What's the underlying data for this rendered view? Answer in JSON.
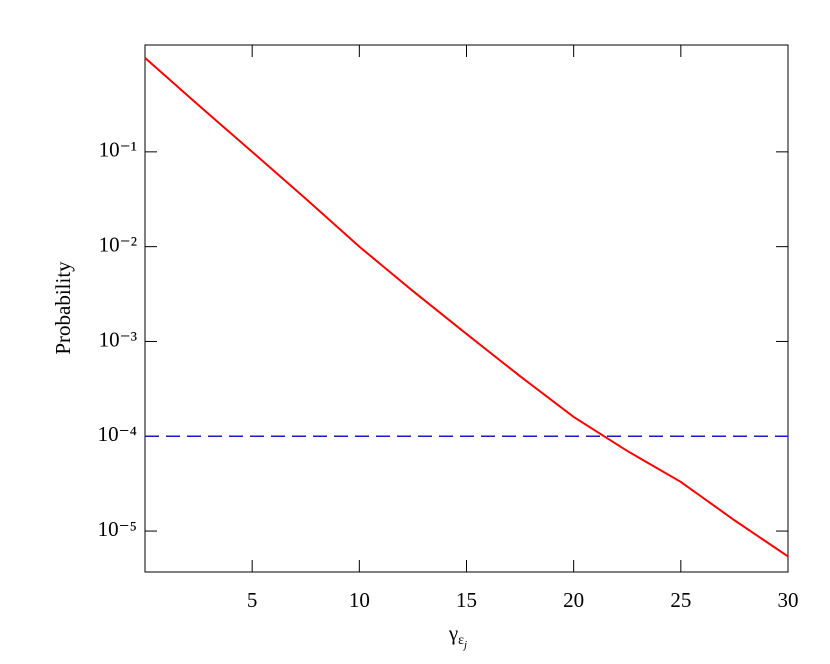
{
  "chart_data": {
    "type": "line",
    "xlabel": [
      "γ",
      "ε",
      "j"
    ],
    "ylabel": "Probability",
    "x": [
      0,
      2.5,
      5,
      7.5,
      10,
      12.5,
      15,
      17.5,
      20,
      22.5,
      25,
      27.5,
      30
    ],
    "series": [
      {
        "color": "#ff0000",
        "values": [
          0.98,
          0.31,
          0.1,
          0.032,
          0.01,
          0.0034,
          0.0012,
          0.00043,
          0.00016,
          7e-05,
          3.3e-05,
          1.3e-05,
          5.4e-06
        ]
      }
    ],
    "hline": {
      "value": 0.0001,
      "color": "#1a1acc",
      "dashed": true
    },
    "xlim": [
      0,
      30
    ],
    "xticks": [
      5,
      10,
      15,
      20,
      25,
      30
    ],
    "ylim": [
      3.7e-06,
      1.34
    ],
    "log_y": true,
    "yticks": [
      {
        "value": 0.1,
        "label": "10⁻¹"
      },
      {
        "value": 0.01,
        "label": "10⁻²"
      },
      {
        "value": 0.001,
        "label": "10⁻³"
      },
      {
        "value": 0.0001,
        "label": "10⁻⁴"
      },
      {
        "value": 1e-05,
        "label": "10⁻⁵"
      }
    ]
  }
}
